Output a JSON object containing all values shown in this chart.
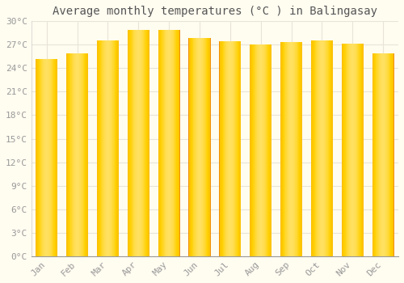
{
  "title": "Average monthly temperatures (°C ) in Balingasay",
  "months": [
    "Jan",
    "Feb",
    "Mar",
    "Apr",
    "May",
    "Jun",
    "Jul",
    "Aug",
    "Sep",
    "Oct",
    "Nov",
    "Dec"
  ],
  "values": [
    25.2,
    25.9,
    27.5,
    28.9,
    28.9,
    27.9,
    27.4,
    27.0,
    27.3,
    27.5,
    27.1,
    25.9
  ],
  "bar_color_center": "#FFD000",
  "bar_color_edge": "#F0900A",
  "bar_color_highlight": "#FFE060",
  "background_color": "#FFFCF0",
  "grid_color": "#E8E4D8",
  "ylim": [
    0,
    30
  ],
  "yticks": [
    0,
    3,
    6,
    9,
    12,
    15,
    18,
    21,
    24,
    27,
    30
  ],
  "ytick_labels": [
    "0°C",
    "3°C",
    "6°C",
    "9°C",
    "12°C",
    "15°C",
    "18°C",
    "21°C",
    "24°C",
    "27°C",
    "30°C"
  ],
  "title_fontsize": 10,
  "tick_fontsize": 8,
  "axis_label_color": "#999999",
  "bar_width": 0.72,
  "n_gradient_steps": 50
}
